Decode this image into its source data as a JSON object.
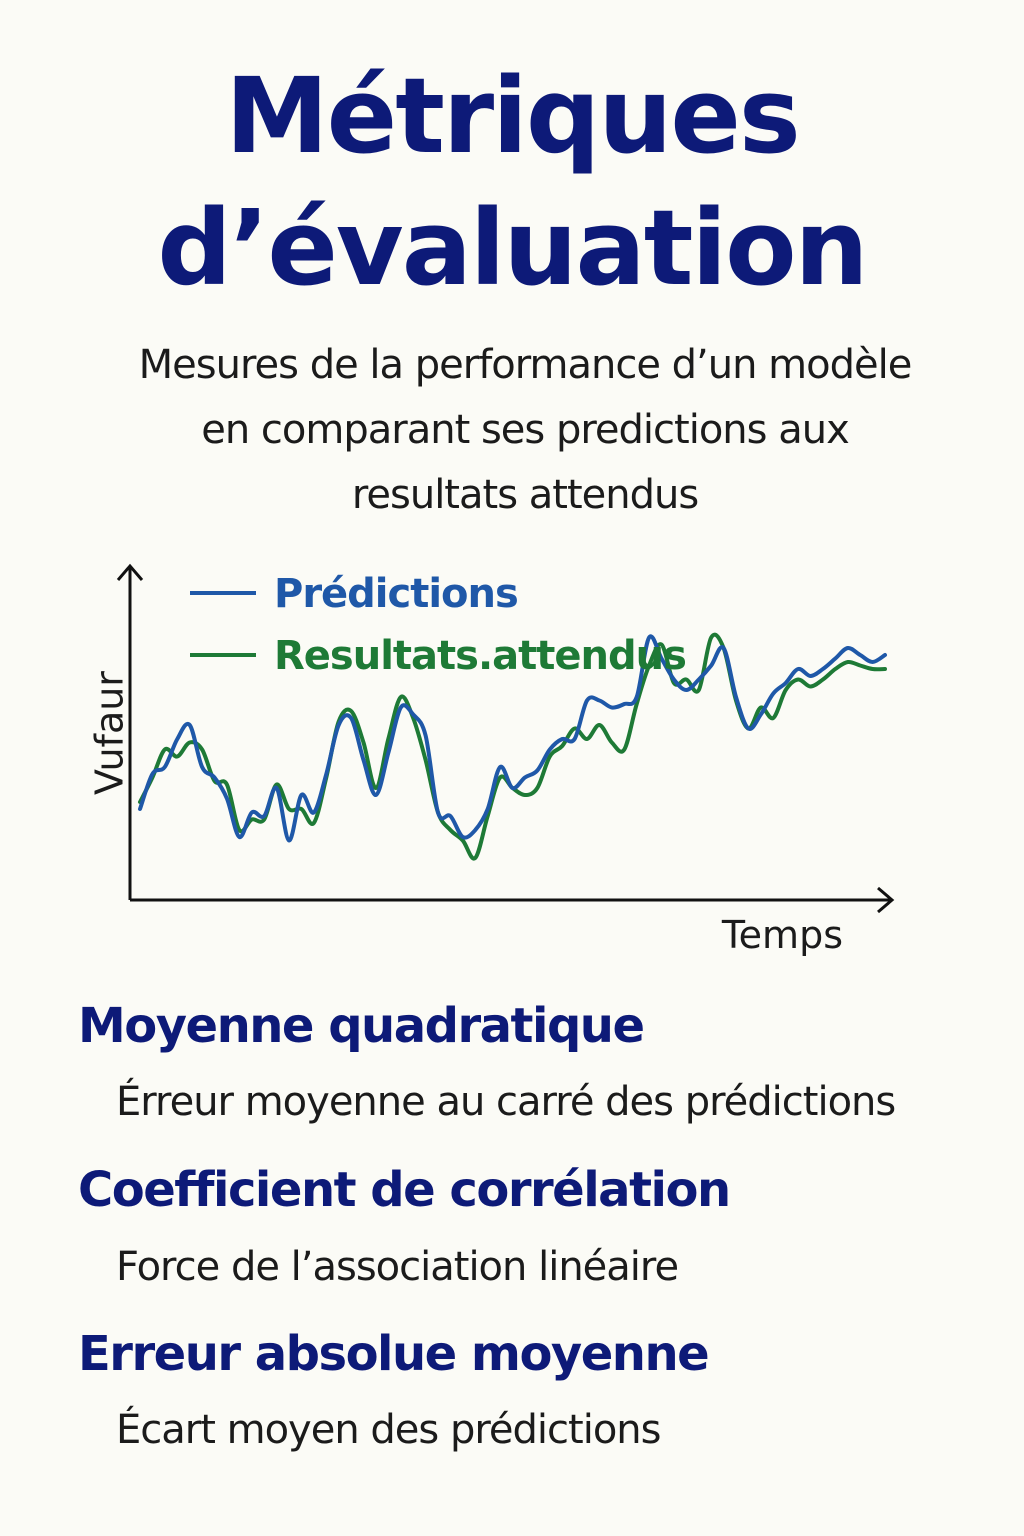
{
  "title": {
    "line1": "Métriques",
    "line2": "d’évaluation"
  },
  "subtitle": {
    "line1": "Mesures de la performance d’un modèle",
    "line2": "en comparant ses predictions aux",
    "line3": "resultats attendus"
  },
  "colors": {
    "title": "#0d1a78",
    "predictions": "#1f58a8",
    "attendus": "#1e7a36",
    "text": "#1b1b1b"
  },
  "chart_data": {
    "type": "line",
    "xlabel": "Temps",
    "ylabel": "Vufaur",
    "x": [
      0,
      0.5,
      1,
      1.5,
      2,
      2.5,
      3,
      3.5,
      4,
      4.5,
      5,
      5.5,
      6,
      6.5,
      7,
      7.5,
      8,
      8.5,
      9,
      9.5,
      10,
      10.5,
      11,
      11.5,
      12,
      12.5,
      13,
      13.5,
      14,
      14.5,
      15,
      15.5,
      16,
      16.5,
      17,
      17.5,
      18,
      18.5,
      19,
      19.5,
      20,
      20.5,
      21,
      21.5,
      22,
      22.5,
      23,
      23.5,
      24,
      24.5,
      25,
      25.5,
      26,
      26.5,
      27,
      27.5,
      28,
      28.5,
      29,
      29.5,
      30
    ],
    "xlim": [
      0,
      30
    ],
    "ylim": [
      0,
      10
    ],
    "grid": false,
    "legend_position": "top-left",
    "series": [
      {
        "name": "Prédictions",
        "values": [
          2.6,
          3.6,
          3.8,
          4.6,
          5.0,
          3.8,
          3.5,
          2.9,
          1.8,
          2.5,
          2.4,
          3.2,
          1.7,
          3.0,
          2.5,
          3.6,
          5.0,
          5.2,
          4.0,
          3.0,
          4.2,
          5.5,
          5.3,
          4.7,
          2.5,
          2.4,
          1.8,
          2.0,
          2.6,
          3.8,
          3.2,
          3.5,
          3.7,
          4.3,
          4.6,
          4.6,
          5.7,
          5.7,
          5.5,
          5.6,
          5.8,
          7.5,
          6.9,
          6.3,
          6.0,
          6.3,
          6.7,
          7.2,
          5.8,
          4.9,
          5.3,
          5.9,
          6.2,
          6.6,
          6.4,
          6.6,
          6.9,
          7.2,
          7.0,
          6.8,
          7.0
        ]
      },
      {
        "name": "Resultats.attendus",
        "values": [
          2.8,
          3.5,
          4.3,
          4.1,
          4.5,
          4.3,
          3.4,
          3.3,
          2.0,
          2.3,
          2.3,
          3.3,
          2.6,
          2.6,
          2.2,
          3.5,
          5.1,
          5.4,
          4.5,
          3.2,
          4.6,
          5.8,
          5.2,
          4.0,
          2.5,
          2.0,
          1.7,
          1.2,
          2.4,
          3.5,
          3.2,
          3.0,
          3.2,
          4.1,
          4.4,
          4.9,
          4.6,
          5.0,
          4.5,
          4.3,
          5.6,
          6.7,
          7.3,
          6.2,
          6.3,
          6.0,
          7.5,
          7.2,
          5.7,
          4.9,
          5.5,
          5.2,
          6.0,
          6.3,
          6.1,
          6.3,
          6.6,
          6.8,
          6.7,
          6.6,
          6.6
        ]
      }
    ]
  },
  "metrics": [
    {
      "title": "Moyenne quadratique",
      "desc": "Érreur moyenne au carré des prédictions"
    },
    {
      "title": "Coefficient de corrélation",
      "desc": "Force de l’association linéaire"
    },
    {
      "title": "Erreur absolue moyenne",
      "desc": "Écart moyen des prédictions"
    }
  ]
}
